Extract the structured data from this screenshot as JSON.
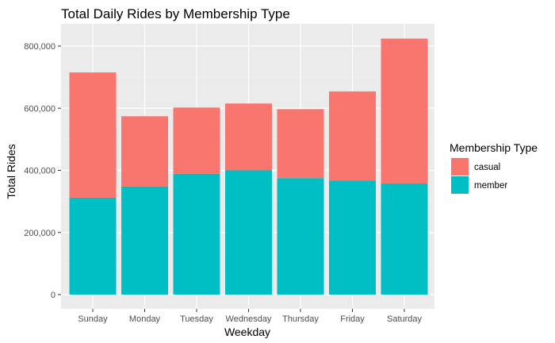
{
  "chart_data": {
    "type": "bar",
    "stacked": true,
    "title": "Total Daily Rides by Membership Type",
    "xlabel": "Weekday",
    "ylabel": "Total Rides",
    "categories": [
      "Sunday",
      "Monday",
      "Tuesday",
      "Wednesday",
      "Thursday",
      "Friday",
      "Saturday"
    ],
    "series": [
      {
        "name": "member",
        "color": "#00BFC4",
        "values": [
          312000,
          348000,
          389000,
          400000,
          375000,
          367000,
          358000
        ]
      },
      {
        "name": "casual",
        "color": "#F8766D",
        "values": [
          403000,
          226000,
          213000,
          215000,
          222000,
          287000,
          466000
        ]
      }
    ],
    "ylim": [
      0,
      850000
    ],
    "yticks": [
      0,
      200000,
      400000,
      600000,
      800000
    ],
    "ytick_labels": [
      "0",
      "200,000",
      "400,000",
      "600,000",
      "800,000"
    ],
    "grid": true,
    "panel_background": "#EBEBEB",
    "legend": {
      "title": "Membership Type",
      "position": "right",
      "entries": [
        {
          "name": "casual",
          "color": "#F8766D"
        },
        {
          "name": "member",
          "color": "#00BFC4"
        }
      ]
    }
  }
}
